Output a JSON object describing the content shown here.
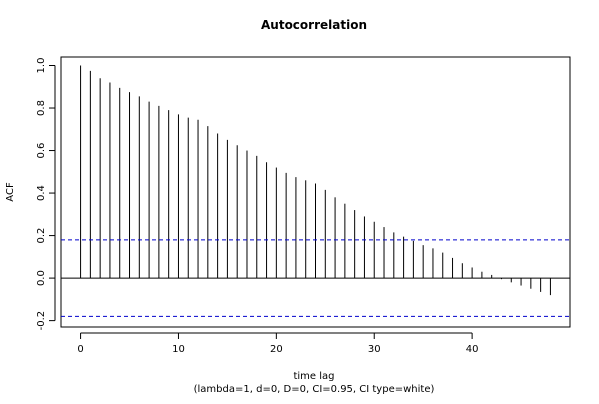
{
  "chart_data": {
    "type": "bar",
    "title": "Autocorrelation",
    "xlabel": "time lag",
    "subtitle": "(lambda=1, d=0, D=0, CI=0.95, CI type=white)",
    "ylabel": "ACF",
    "xlim": [
      -2,
      50
    ],
    "ylim": [
      -0.23,
      1.04
    ],
    "x_ticks": [
      0,
      10,
      20,
      30,
      40
    ],
    "y_ticks": [
      -0.2,
      0.0,
      0.2,
      0.4,
      0.6,
      0.8,
      1.0
    ],
    "y_tick_labels": [
      "-0.2",
      "0.0",
      "0.2",
      "0.4",
      "0.6",
      "0.8",
      "1.0"
    ],
    "ci_upper": 0.18,
    "ci_lower": -0.18,
    "ci_color": "#0000cc",
    "x": [
      0,
      1,
      2,
      3,
      4,
      5,
      6,
      7,
      8,
      9,
      10,
      11,
      12,
      13,
      14,
      15,
      16,
      17,
      18,
      19,
      20,
      21,
      22,
      23,
      24,
      25,
      26,
      27,
      28,
      29,
      30,
      31,
      32,
      33,
      34,
      35,
      36,
      37,
      38,
      39,
      40,
      41,
      42,
      43,
      44,
      45,
      46,
      47,
      48
    ],
    "values": [
      1.0,
      0.975,
      0.94,
      0.92,
      0.895,
      0.875,
      0.855,
      0.83,
      0.81,
      0.79,
      0.77,
      0.755,
      0.745,
      0.715,
      0.68,
      0.65,
      0.625,
      0.6,
      0.575,
      0.545,
      0.52,
      0.495,
      0.475,
      0.46,
      0.445,
      0.415,
      0.38,
      0.35,
      0.32,
      0.29,
      0.265,
      0.24,
      0.215,
      0.195,
      0.175,
      0.155,
      0.14,
      0.12,
      0.095,
      0.07,
      0.05,
      0.03,
      0.015,
      -0.005,
      -0.02,
      -0.035,
      -0.05,
      -0.065,
      -0.08
    ]
  }
}
